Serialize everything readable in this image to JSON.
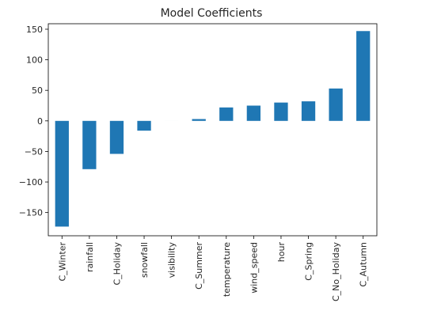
{
  "chart_data": {
    "type": "bar",
    "title": "Model Coefficients",
    "xlabel": "",
    "ylabel": "",
    "categories": [
      "C_Winter",
      "rainfall",
      "C_Holiday",
      "snowfall",
      "visibility",
      "C_Summer",
      "temperature",
      "wind_speed",
      "hour",
      "C_Spring",
      "C_No_Holiday",
      "C_Autumn"
    ],
    "values": [
      -173,
      -79,
      -54,
      -16,
      0,
      3,
      22,
      25,
      30,
      32,
      53,
      147
    ],
    "ylim": [
      -188,
      159
    ],
    "yticks": [
      -150,
      -100,
      -50,
      0,
      50,
      100,
      150
    ],
    "grid": false,
    "bar_color": "#1f77b4"
  }
}
